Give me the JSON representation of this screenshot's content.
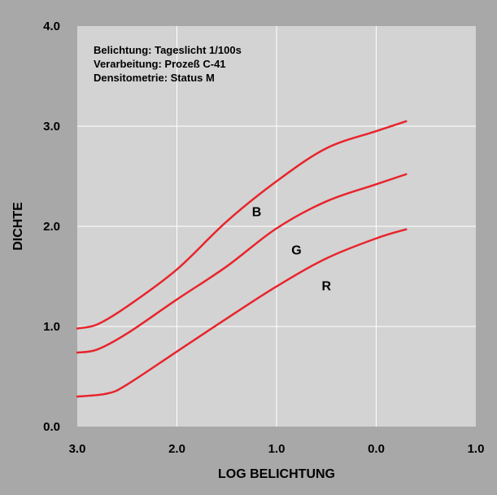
{
  "chart_data": {
    "type": "line",
    "notes": [
      "Belichtung: Tageslicht 1/100s",
      "Verarbeitung: Prozeß C-41",
      "Densitometrie: Status M"
    ],
    "xlabel": "LOG BELICHTUNG",
    "ylabel": "DICHTE",
    "xlim": [
      3.0,
      -1.0
    ],
    "ylim": [
      0.0,
      4.0
    ],
    "x_ticks": [
      3.0,
      2.0,
      1.0,
      0.0,
      -1.0
    ],
    "x_tick_labels": [
      "3.0",
      "2.0",
      "1.0",
      "0.0",
      "1.0"
    ],
    "y_ticks": [
      0.0,
      1.0,
      2.0,
      3.0,
      4.0
    ],
    "y_tick_labels": [
      "0.0",
      "1.0",
      "2.0",
      "3.0",
      "4.0"
    ],
    "grid": true,
    "series": [
      {
        "name": "B",
        "color": "#e8242c",
        "label_at": [
          1.2,
          2.1
        ],
        "points": [
          [
            3.0,
            0.98
          ],
          [
            2.8,
            1.02
          ],
          [
            2.5,
            1.2
          ],
          [
            2.0,
            1.57
          ],
          [
            1.5,
            2.05
          ],
          [
            1.0,
            2.45
          ],
          [
            0.5,
            2.78
          ],
          [
            0.0,
            2.95
          ],
          [
            -0.3,
            3.05
          ]
        ]
      },
      {
        "name": "G",
        "color": "#e8242c",
        "label_at": [
          0.8,
          1.72
        ],
        "points": [
          [
            3.0,
            0.74
          ],
          [
            2.8,
            0.77
          ],
          [
            2.5,
            0.93
          ],
          [
            2.0,
            1.27
          ],
          [
            1.5,
            1.6
          ],
          [
            1.0,
            1.98
          ],
          [
            0.5,
            2.25
          ],
          [
            0.0,
            2.42
          ],
          [
            -0.3,
            2.52
          ]
        ]
      },
      {
        "name": "R",
        "color": "#e8242c",
        "label_at": [
          0.5,
          1.36
        ],
        "points": [
          [
            3.0,
            0.3
          ],
          [
            2.7,
            0.33
          ],
          [
            2.5,
            0.42
          ],
          [
            2.0,
            0.75
          ],
          [
            1.5,
            1.08
          ],
          [
            1.0,
            1.4
          ],
          [
            0.5,
            1.68
          ],
          [
            0.0,
            1.88
          ],
          [
            -0.3,
            1.97
          ]
        ]
      }
    ]
  }
}
